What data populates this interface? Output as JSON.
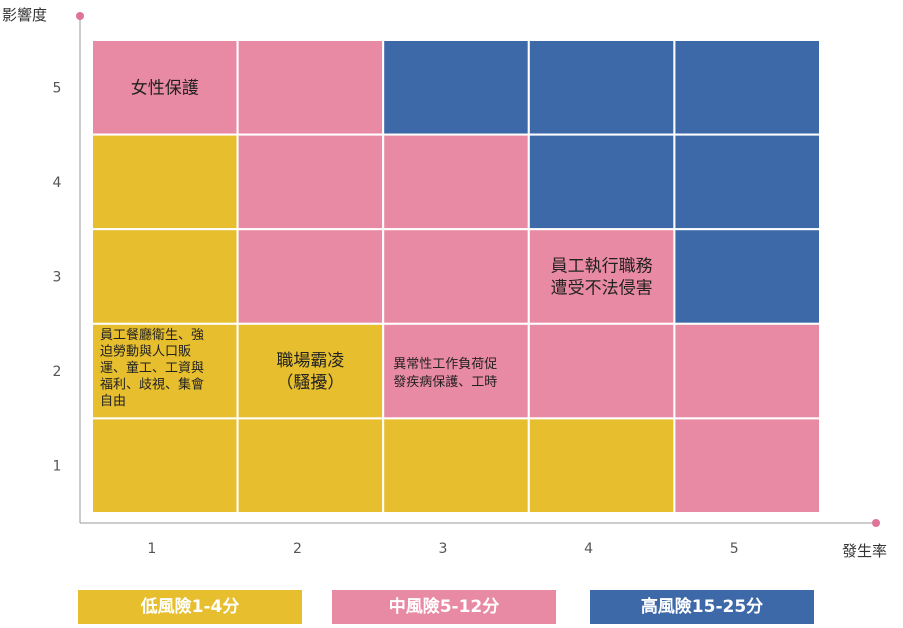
{
  "colors": {
    "low": "#E6BE2E",
    "mid": "#E98AA4",
    "high": "#3E69A8",
    "axis": "#9a9a9a",
    "dot": "#E0739A"
  },
  "legend": [
    {
      "label": "低風險1-4分",
      "color": "#E6BE2E"
    },
    {
      "label": "中風險5-12分",
      "color": "#E98AA4"
    },
    {
      "label": "高風險15-25分",
      "color": "#3E69A8"
    }
  ],
  "chart_data": {
    "type": "heatmap",
    "xlabel": "發生率",
    "ylabel": "影響度",
    "x_categories": [
      "1",
      "2",
      "3",
      "4",
      "5"
    ],
    "y_categories": [
      "1",
      "2",
      "3",
      "4",
      "5"
    ],
    "grid": [
      {
        "impact": 5,
        "levels": [
          "mid",
          "mid",
          "high",
          "high",
          "high"
        ]
      },
      {
        "impact": 4,
        "levels": [
          "low",
          "mid",
          "mid",
          "high",
          "high"
        ]
      },
      {
        "impact": 3,
        "levels": [
          "low",
          "mid",
          "mid",
          "mid",
          "high"
        ]
      },
      {
        "impact": 2,
        "levels": [
          "low",
          "low",
          "mid",
          "mid",
          "mid"
        ]
      },
      {
        "impact": 1,
        "levels": [
          "low",
          "low",
          "low",
          "low",
          "mid"
        ]
      }
    ],
    "annotations": [
      {
        "x": 1,
        "y": 5,
        "lines": [
          "女性保護"
        ]
      },
      {
        "x": 4,
        "y": 3,
        "lines": [
          "員工執行職務",
          "遭受不法侵害"
        ]
      },
      {
        "x": 1,
        "y": 2,
        "lines": [
          "員工餐廳衛生、強",
          "迫勞動與人口販",
          "運、童工、工資與",
          "福利、歧視、集會",
          "自由"
        ]
      },
      {
        "x": 2,
        "y": 2,
        "lines": [
          "職場霸凌",
          "（騷擾）"
        ]
      },
      {
        "x": 3,
        "y": 2,
        "lines": [
          "異常性工作負荷促",
          "發疾病保護、工時"
        ]
      }
    ]
  }
}
